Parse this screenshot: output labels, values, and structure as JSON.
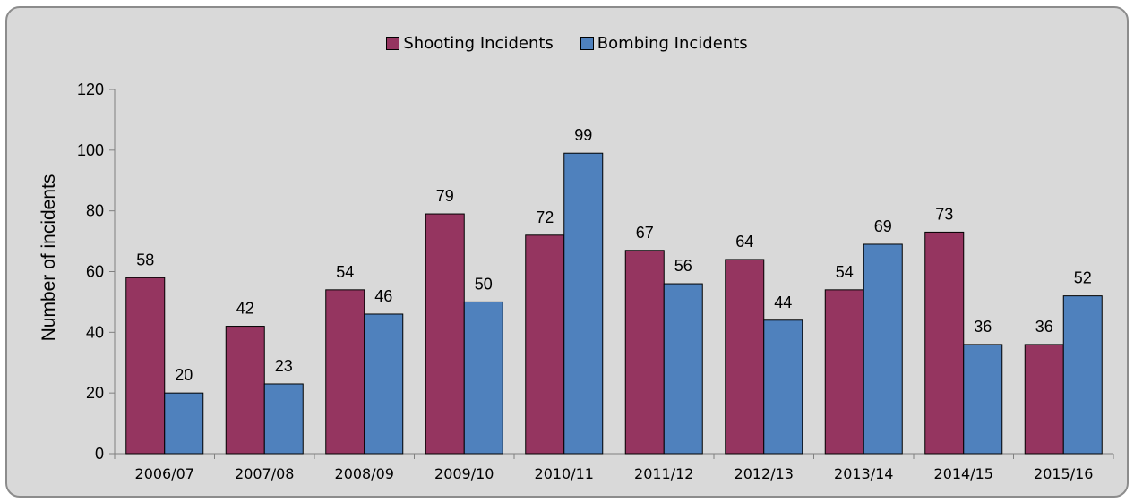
{
  "chart_data": {
    "type": "bar",
    "categories": [
      "2006/07",
      "2007/08",
      "2008/09",
      "2009/10",
      "2010/11",
      "2011/12",
      "2012/13",
      "2013/14",
      "2014/15",
      "2015/16"
    ],
    "series": [
      {
        "name": "Shooting Incidents",
        "values": [
          58,
          42,
          54,
          79,
          72,
          67,
          64,
          54,
          73,
          36
        ],
        "color": "#953560"
      },
      {
        "name": "Bombing Incidents",
        "values": [
          20,
          23,
          46,
          50,
          99,
          56,
          44,
          69,
          36,
          52
        ],
        "color": "#4f81bd"
      }
    ],
    "ylabel": "Number of incidents",
    "xlabel": "",
    "ylim": [
      0,
      120
    ],
    "yticks": [
      0,
      20,
      40,
      60,
      80,
      100,
      120
    ],
    "grid": false,
    "legend_position": "top-center"
  }
}
